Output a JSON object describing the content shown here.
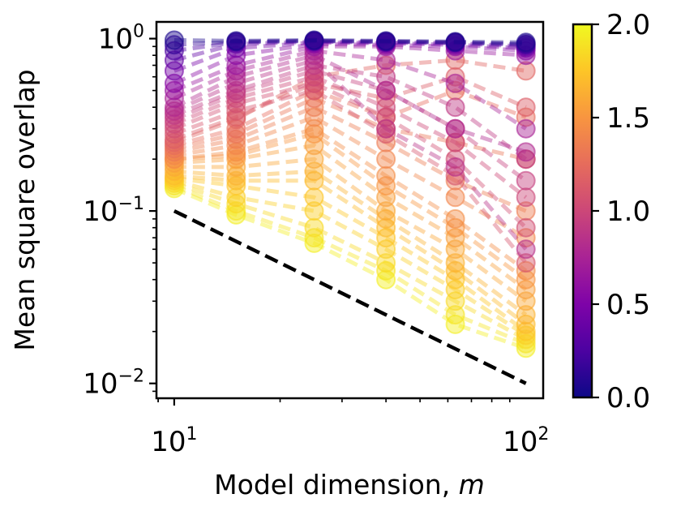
{
  "chart_data": {
    "type": "scatter",
    "subtype": "log-log line-scatter with colorbar",
    "xlabel_text": "Model dimension, ",
    "xlabel_var": "m",
    "ylabel": "Mean square overlap",
    "x_scale": "log",
    "y_scale": "log",
    "xlim": [
      8.9,
      112
    ],
    "ylim": [
      0.0082,
      1.25
    ],
    "x_ticks": [
      {
        "value": 10,
        "base": "10",
        "exp": "1"
      },
      {
        "value": 100,
        "base": "10",
        "exp": "2"
      }
    ],
    "y_ticks": [
      {
        "value": 0.01,
        "base": "10",
        "exp": "−2"
      },
      {
        "value": 0.1,
        "base": "10",
        "exp": "−1"
      },
      {
        "value": 1,
        "base": "10",
        "exp": "0"
      }
    ],
    "x": [
      10,
      15,
      25,
      40,
      63,
      100
    ],
    "reference_line": {
      "style": "dashed",
      "color": "#000000",
      "x": [
        10,
        100
      ],
      "y": [
        0.1,
        0.01
      ],
      "slope": -1
    },
    "colorbar": {
      "colormap": "plasma",
      "vmin": 0.0,
      "vmax": 2.0,
      "ticks": [
        "0.0",
        "0.5",
        "1.0",
        "1.5",
        "2.0"
      ],
      "tick_values": [
        0.0,
        0.5,
        1.0,
        1.5,
        2.0
      ]
    },
    "series": [
      {
        "c": 0.05,
        "y": [
          0.98,
          0.97,
          0.98,
          0.97,
          0.96,
          0.95
        ]
      },
      {
        "c": 0.15,
        "y": [
          0.92,
          0.96,
          0.97,
          0.96,
          0.95,
          0.93
        ]
      },
      {
        "c": 0.25,
        "y": [
          0.85,
          0.95,
          0.97,
          0.96,
          0.95,
          0.92
        ]
      },
      {
        "c": 0.35,
        "y": [
          0.75,
          0.93,
          0.96,
          0.95,
          0.94,
          0.9
        ]
      },
      {
        "c": 0.45,
        "y": [
          0.65,
          0.88,
          0.95,
          0.94,
          0.92,
          0.88
        ]
      },
      {
        "c": 0.55,
        "y": [
          0.55,
          0.8,
          0.93,
          0.92,
          0.9,
          0.85
        ]
      },
      {
        "c": 0.65,
        "y": [
          0.5,
          0.7,
          0.9,
          0.9,
          0.85,
          0.8
        ]
      },
      {
        "c": 0.75,
        "y": [
          0.45,
          0.65,
          0.85,
          0.75,
          0.55,
          0.3
        ]
      },
      {
        "c": 0.8,
        "y": [
          0.4,
          0.6,
          0.8,
          0.5,
          0.3,
          0.22
        ]
      },
      {
        "c": 0.85,
        "y": [
          0.38,
          0.55,
          0.75,
          0.3,
          0.18,
          0.06
        ]
      },
      {
        "c": 0.9,
        "y": [
          0.36,
          0.5,
          0.7,
          0.6,
          0.4,
          0.2
        ]
      },
      {
        "c": 0.95,
        "y": [
          0.34,
          0.48,
          0.65,
          0.5,
          0.3,
          0.15
        ]
      },
      {
        "c": 1.0,
        "y": [
          0.32,
          0.45,
          0.6,
          0.4,
          0.25,
          0.12
        ]
      },
      {
        "c": 1.05,
        "y": [
          0.3,
          0.42,
          0.55,
          0.35,
          0.2,
          0.08
        ]
      },
      {
        "c": 1.1,
        "y": [
          0.28,
          0.38,
          0.5,
          0.28,
          0.16,
          0.05
        ]
      },
      {
        "c": 1.15,
        "y": [
          0.26,
          0.35,
          0.55,
          0.45,
          0.6,
          0.4
        ]
      },
      {
        "c": 1.2,
        "y": [
          0.25,
          0.34,
          0.6,
          0.7,
          0.75,
          0.65
        ]
      },
      {
        "c": 1.25,
        "y": [
          0.24,
          0.3,
          0.5,
          0.35,
          0.5,
          0.35
        ]
      },
      {
        "c": 1.3,
        "y": [
          0.23,
          0.28,
          0.45,
          0.3,
          0.25,
          0.2
        ]
      },
      {
        "c": 1.35,
        "y": [
          0.22,
          0.26,
          0.4,
          0.25,
          0.15,
          0.1
        ]
      },
      {
        "c": 1.4,
        "y": [
          0.21,
          0.24,
          0.35,
          0.2,
          0.12,
          0.07
        ]
      },
      {
        "c": 1.45,
        "y": [
          0.2,
          0.22,
          0.3,
          0.16,
          0.09,
          0.045
        ]
      },
      {
        "c": 1.5,
        "y": [
          0.2,
          0.21,
          0.28,
          0.14,
          0.08,
          0.04
        ]
      },
      {
        "c": 1.55,
        "y": [
          0.19,
          0.2,
          0.24,
          0.12,
          0.07,
          0.035
        ]
      },
      {
        "c": 1.6,
        "y": [
          0.18,
          0.18,
          0.2,
          0.1,
          0.06,
          0.03
        ]
      },
      {
        "c": 1.65,
        "y": [
          0.17,
          0.16,
          0.17,
          0.09,
          0.05,
          0.025
        ]
      },
      {
        "c": 1.7,
        "y": [
          0.16,
          0.15,
          0.15,
          0.08,
          0.045,
          0.022
        ]
      },
      {
        "c": 1.75,
        "y": [
          0.155,
          0.14,
          0.12,
          0.07,
          0.04,
          0.02
        ]
      },
      {
        "c": 1.8,
        "y": [
          0.15,
          0.12,
          0.1,
          0.06,
          0.035,
          0.019
        ]
      },
      {
        "c": 1.85,
        "y": [
          0.145,
          0.11,
          0.08,
          0.05,
          0.03,
          0.018
        ]
      },
      {
        "c": 1.9,
        "y": [
          0.14,
          0.1,
          0.07,
          0.045,
          0.025,
          0.017
        ]
      },
      {
        "c": 1.95,
        "y": [
          0.135,
          0.095,
          0.065,
          0.04,
          0.022,
          0.016
        ]
      }
    ]
  }
}
